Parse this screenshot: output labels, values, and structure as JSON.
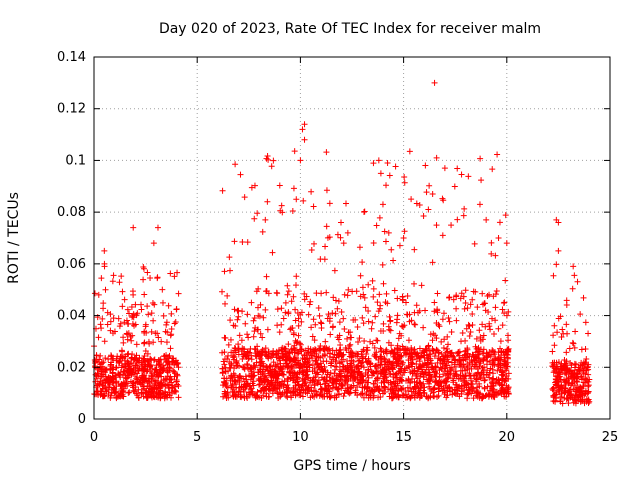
{
  "chart_data": {
    "type": "scatter",
    "title": "Day 020 of 2023, Rate Of TEC Index for receiver malm",
    "xlabel": "GPS time / hours",
    "ylabel": "ROTI / TECUs",
    "xlim": [
      0,
      25
    ],
    "ylim": [
      0,
      0.14
    ],
    "x_ticks": [
      0,
      5,
      10,
      15,
      20,
      25
    ],
    "y_ticks": [
      0,
      0.02,
      0.04,
      0.06,
      0.08,
      0.1,
      0.12,
      0.14
    ],
    "x_tick_labels": [
      "0",
      "5",
      "10",
      "15",
      "20",
      "25"
    ],
    "y_tick_labels": [
      "0",
      "0.02",
      "0.04",
      "0.06",
      "0.08",
      "0.1",
      "0.12",
      "0.14"
    ],
    "grid": true,
    "marker": "+",
    "color": "#ff0000",
    "data_segments": [
      {
        "x_start": 0.0,
        "x_end": 4.1,
        "typical_low": 0.008,
        "typical_high": 0.045,
        "peak": 0.075
      },
      {
        "x_start": 6.2,
        "x_end": 20.1,
        "typical_low": 0.008,
        "typical_high": 0.05,
        "peak": 0.13
      },
      {
        "x_start": 22.2,
        "x_end": 24.0,
        "typical_low": 0.006,
        "typical_high": 0.04,
        "peak": 0.077
      }
    ],
    "notable_points": [
      {
        "x": 16.5,
        "y": 0.13
      },
      {
        "x": 10.2,
        "y": 0.114
      },
      {
        "x": 10.1,
        "y": 0.112
      },
      {
        "x": 10.2,
        "y": 0.108
      },
      {
        "x": 10.0,
        "y": 0.1
      },
      {
        "x": 16.6,
        "y": 0.101
      },
      {
        "x": 17.0,
        "y": 0.097
      },
      {
        "x": 13.8,
        "y": 0.1
      },
      {
        "x": 13.9,
        "y": 0.095
      },
      {
        "x": 9.8,
        "y": 0.085
      },
      {
        "x": 8.4,
        "y": 0.084
      },
      {
        "x": 18.7,
        "y": 0.083
      },
      {
        "x": 16.2,
        "y": 0.081
      },
      {
        "x": 14.0,
        "y": 0.083
      },
      {
        "x": 19.0,
        "y": 0.077
      },
      {
        "x": 8.3,
        "y": 0.077
      },
      {
        "x": 22.4,
        "y": 0.077
      },
      {
        "x": 22.5,
        "y": 0.076
      },
      {
        "x": 1.9,
        "y": 0.074
      },
      {
        "x": 3.1,
        "y": 0.074
      },
      {
        "x": 17.3,
        "y": 0.075
      },
      {
        "x": 12.3,
        "y": 0.072
      },
      {
        "x": 12.1,
        "y": 0.068
      },
      {
        "x": 20.0,
        "y": 0.068
      },
      {
        "x": 19.6,
        "y": 0.07
      },
      {
        "x": 22.5,
        "y": 0.065
      },
      {
        "x": 0.5,
        "y": 0.065
      },
      {
        "x": 2.9,
        "y": 0.068
      },
      {
        "x": 15.0,
        "y": 0.07
      },
      {
        "x": 16.9,
        "y": 0.071
      }
    ]
  }
}
